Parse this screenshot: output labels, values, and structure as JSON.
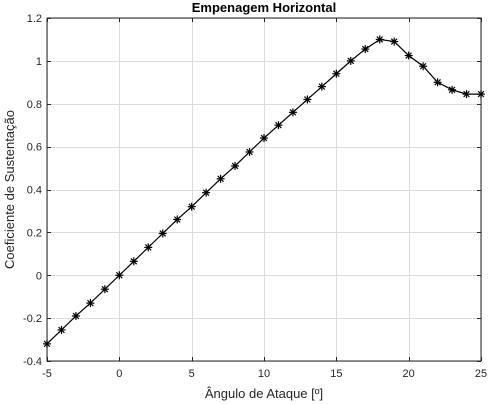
{
  "chart_data": {
    "type": "line",
    "title": "Empenagem Horizontal",
    "xlabel": "Ângulo de Ataque [º]",
    "ylabel": "Coeficiente de Sustentação",
    "xlim": [
      -5,
      25
    ],
    "ylim": [
      -0.4,
      1.2
    ],
    "xticks": [
      -5,
      0,
      5,
      10,
      15,
      20,
      25
    ],
    "yticks": [
      -0.4,
      -0.2,
      0,
      0.2,
      0.4,
      0.6,
      0.8,
      1,
      1.2
    ],
    "xtick_labels": [
      "-5",
      "0",
      "5",
      "10",
      "15",
      "20",
      "25"
    ],
    "ytick_labels": [
      "-0.4",
      "-0.2",
      "0",
      "0.2",
      "0.4",
      "0.6",
      "0.8",
      "1",
      "1.2"
    ],
    "grid": true,
    "marker": "asterisk",
    "series": [
      {
        "color": "#000000",
        "x": [
          -5,
          -4,
          -3,
          -2,
          -1,
          0,
          1,
          2,
          3,
          4,
          5,
          6,
          7,
          8,
          9,
          10,
          11,
          12,
          13,
          14,
          15,
          16,
          17,
          18,
          19,
          20,
          21,
          22,
          23,
          24,
          25
        ],
        "y": [
          -0.32,
          -0.255,
          -0.19,
          -0.13,
          -0.065,
          0.0,
          0.065,
          0.13,
          0.195,
          0.26,
          0.32,
          0.385,
          0.45,
          0.51,
          0.575,
          0.64,
          0.7,
          0.76,
          0.82,
          0.88,
          0.94,
          1.0,
          1.055,
          1.1,
          1.09,
          1.025,
          0.975,
          0.9,
          0.865,
          0.845,
          0.845
        ]
      }
    ]
  }
}
